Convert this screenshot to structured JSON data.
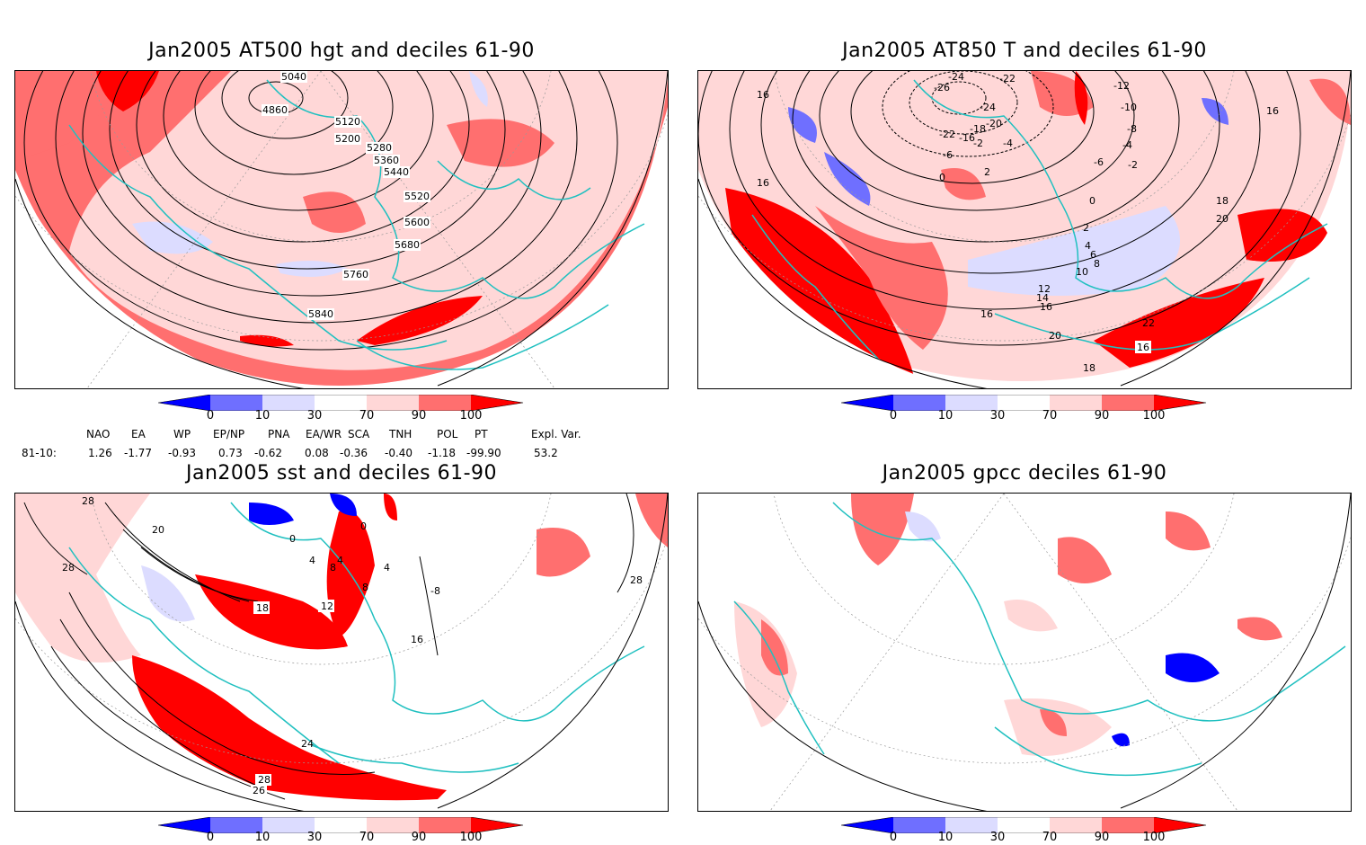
{
  "panels": [
    {
      "title": "Jan2005 AT500 hgt and deciles 61-90",
      "contour_labels": [
        "4860",
        "5120",
        "5200",
        "5280",
        "5360",
        "5440",
        "5520",
        "5600",
        "5680",
        "5760",
        "5840",
        "5040"
      ]
    },
    {
      "title": "Jan2005 AT850 T and deciles 61-90",
      "contour_labels": [
        "16",
        "16",
        "-24",
        "-26",
        "-22",
        "-24",
        "-20",
        "-22",
        "-18",
        "-16",
        "-4",
        "-6",
        "-2",
        "0",
        "2",
        "-12",
        "-10",
        "-8",
        "-4",
        "-6",
        "-2",
        "0",
        "2",
        "4",
        "6",
        "8",
        "10",
        "12",
        "14",
        "16",
        "16",
        "18",
        "20",
        "16",
        "22",
        "20",
        "18",
        "16"
      ]
    },
    {
      "title": "Jan2005 sst and deciles 61-90",
      "contour_labels": [
        "28",
        "28",
        "20",
        "0",
        "4",
        "4",
        "8",
        "4",
        "0",
        "18",
        "12",
        "16",
        "24",
        "28",
        "26",
        "28",
        "8",
        "-8"
      ]
    },
    {
      "title": "Jan2005 gpcc deciles 61-90",
      "contour_labels": []
    }
  ],
  "colorbar": {
    "ticks": [
      "0",
      "10",
      "30",
      "70",
      "90",
      "100"
    ],
    "colors": [
      "#0000ff",
      "#6f6fff",
      "#dcdcff",
      "#ffffff",
      "#ffd7d7",
      "#ff6f6f",
      "#ff0000"
    ]
  },
  "indices": {
    "headers": [
      "NAO",
      "EA",
      "WP",
      "EP/NP",
      "PNA",
      "EA/WR",
      "SCA",
      "TNH",
      "POL",
      "PT",
      "Expl. Var."
    ],
    "row_label": "81-10:",
    "values": [
      "1.26",
      "-1.77",
      "-0.93",
      "0.73",
      "-0.62",
      "0.08",
      "-0.36",
      "-0.40",
      "-1.18",
      "-99.90",
      "53.2"
    ]
  }
}
